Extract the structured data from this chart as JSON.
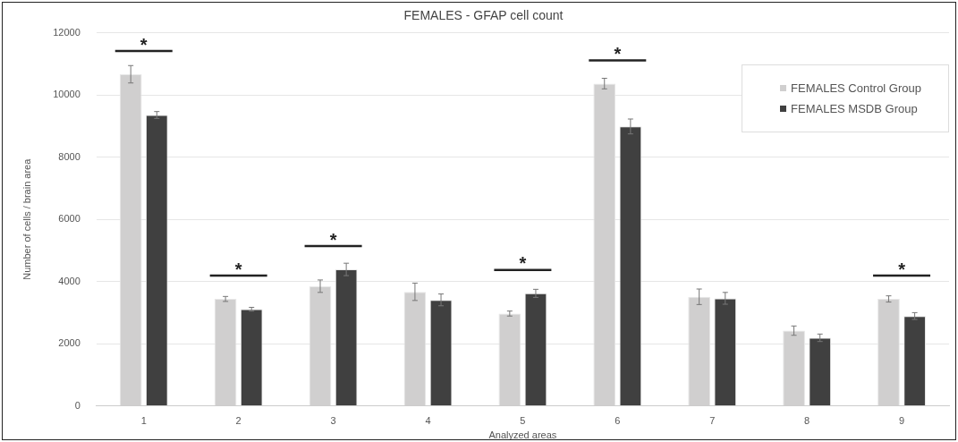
{
  "chart_data": {
    "type": "bar",
    "title": "FEMALES - GFAP cell count",
    "xlabel": "Analyzed areas",
    "ylabel": "Number of cells / brain area",
    "categories": [
      "1",
      "2",
      "3",
      "4",
      "5",
      "6",
      "7",
      "8",
      "9"
    ],
    "series": [
      {
        "name": "FEMALES Control Group",
        "color": "#d0cfcf",
        "values": [
          10670,
          3440,
          3850,
          3670,
          2970,
          10370,
          3510,
          2420,
          3440
        ],
        "errors": [
          280,
          80,
          200,
          280,
          80,
          170,
          250,
          150,
          100
        ]
      },
      {
        "name": "FEMALES MSDB Group",
        "color": "#404040",
        "values": [
          9360,
          3110,
          4390,
          3410,
          3620,
          8990,
          3460,
          2190,
          2890
        ],
        "errors": [
          110,
          60,
          200,
          190,
          130,
          240,
          190,
          120,
          110
        ]
      }
    ],
    "ylim": [
      0,
      12000
    ],
    "yticks": [
      0,
      2000,
      4000,
      6000,
      8000,
      10000,
      12000
    ],
    "grid": "y",
    "legend": "top right",
    "annotations": [
      {
        "text": "*",
        "x": "1",
        "y": 10670
      },
      {
        "text": "*",
        "x": "2",
        "y": 3440
      },
      {
        "text": "*",
        "x": "3",
        "y": 4390
      },
      {
        "text": "*",
        "x": "5",
        "y": 3620
      },
      {
        "text": "*",
        "x": "6",
        "y": 10370
      },
      {
        "text": "*",
        "x": "9",
        "y": 3440
      }
    ]
  }
}
